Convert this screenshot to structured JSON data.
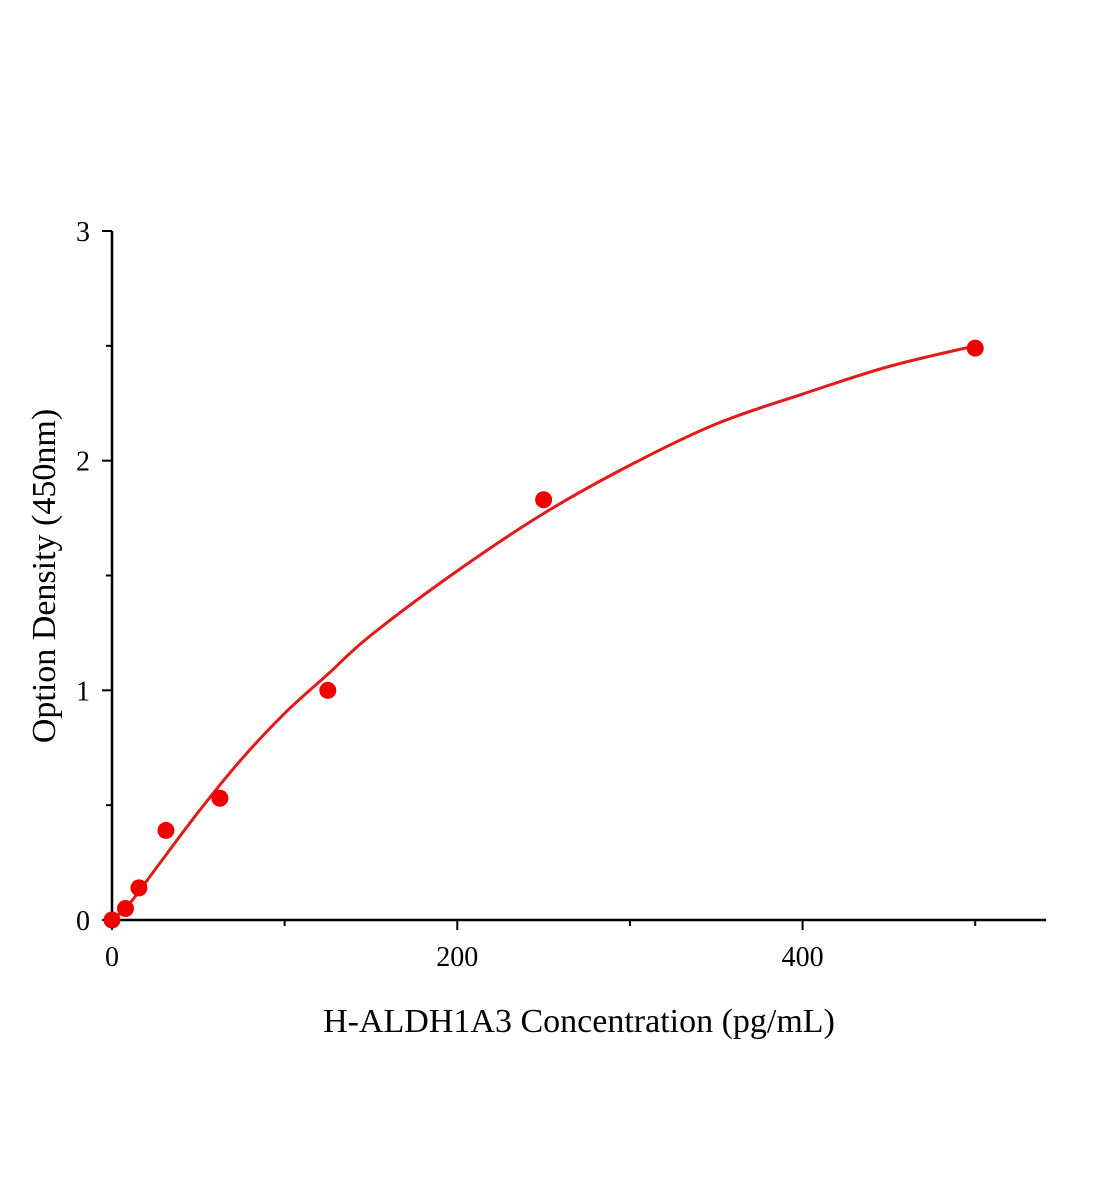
{
  "chart_data": {
    "type": "scatter",
    "title": "",
    "xlabel": "H-ALDH1A3 Concentration (pg/mL)",
    "ylabel": "Option Density (450nm)",
    "xlim": [
      0,
      541
    ],
    "ylim": [
      0,
      3
    ],
    "x_ticks": [
      0,
      200,
      400
    ],
    "x_tick_labels": [
      "0",
      "200",
      "400"
    ],
    "x_minor_ticks": [
      100,
      300,
      500
    ],
    "y_ticks": [
      0,
      1,
      2,
      3
    ],
    "y_tick_labels": [
      "0",
      "1",
      "2",
      "3"
    ],
    "y_minor_ticks": [
      0.5,
      1.5,
      2.5
    ],
    "grid": false,
    "colors": {
      "points": "#ee0000",
      "curve": "#e31a1a",
      "axis": "#000000"
    },
    "points": [
      {
        "x": 0,
        "y": 0.0
      },
      {
        "x": 7.8,
        "y": 0.05
      },
      {
        "x": 15.6,
        "y": 0.14
      },
      {
        "x": 31.25,
        "y": 0.39
      },
      {
        "x": 62.5,
        "y": 0.53
      },
      {
        "x": 125,
        "y": 1.0
      },
      {
        "x": 250,
        "y": 1.83
      },
      {
        "x": 500,
        "y": 2.49
      }
    ],
    "fit_curve": {
      "x": [
        0,
        10,
        25,
        50,
        75,
        100,
        125,
        150,
        200,
        250,
        300,
        350,
        400,
        450,
        500
      ],
      "y": [
        0,
        0.07,
        0.22,
        0.47,
        0.7,
        0.9,
        1.07,
        1.24,
        1.52,
        1.77,
        1.98,
        2.16,
        2.29,
        2.41,
        2.5
      ]
    }
  }
}
